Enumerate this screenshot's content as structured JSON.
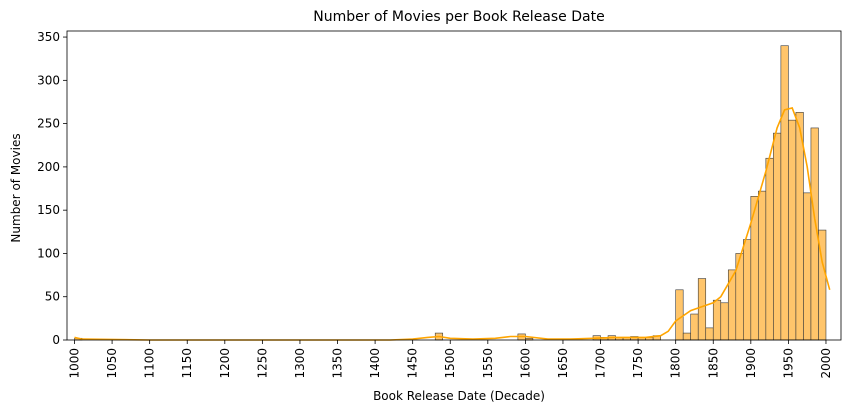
{
  "chart_data": {
    "type": "bar",
    "title": "Number of Movies per Book Release Date",
    "xlabel": "Book Release Date (Decade)",
    "ylabel": "Number of Movies",
    "xlim": [
      990,
      2020
    ],
    "ylim": [
      0,
      357
    ],
    "bin_width": 10,
    "grid": false,
    "bar_color": "#FFC56B",
    "bar_edge_color": "#3a3a3a",
    "kde_color": "#FFA500",
    "x_ticks": [
      "1000",
      "1050",
      "1100",
      "1150",
      "1200",
      "1250",
      "1300",
      "1350",
      "1400",
      "1450",
      "1500",
      "1550",
      "1600",
      "1650",
      "1700",
      "1750",
      "1800",
      "1850",
      "1900",
      "1950",
      "2000"
    ],
    "y_ticks": [
      "0",
      "50",
      "100",
      "150",
      "200",
      "250",
      "300",
      "350"
    ],
    "bins": [
      {
        "x": 1000,
        "value": 2
      },
      {
        "x": 1480,
        "value": 8
      },
      {
        "x": 1590,
        "value": 7
      },
      {
        "x": 1600,
        "value": 2
      },
      {
        "x": 1690,
        "value": 5
      },
      {
        "x": 1700,
        "value": 3
      },
      {
        "x": 1710,
        "value": 5
      },
      {
        "x": 1720,
        "value": 3
      },
      {
        "x": 1730,
        "value": 3
      },
      {
        "x": 1740,
        "value": 4
      },
      {
        "x": 1750,
        "value": 3
      },
      {
        "x": 1760,
        "value": 3
      },
      {
        "x": 1770,
        "value": 5
      },
      {
        "x": 1800,
        "value": 58
      },
      {
        "x": 1810,
        "value": 8
      },
      {
        "x": 1820,
        "value": 30
      },
      {
        "x": 1830,
        "value": 71
      },
      {
        "x": 1840,
        "value": 14
      },
      {
        "x": 1850,
        "value": 46
      },
      {
        "x": 1860,
        "value": 43
      },
      {
        "x": 1870,
        "value": 81
      },
      {
        "x": 1880,
        "value": 100
      },
      {
        "x": 1890,
        "value": 116
      },
      {
        "x": 1900,
        "value": 166
      },
      {
        "x": 1910,
        "value": 172
      },
      {
        "x": 1920,
        "value": 210
      },
      {
        "x": 1930,
        "value": 239
      },
      {
        "x": 1940,
        "value": 340
      },
      {
        "x": 1950,
        "value": 254
      },
      {
        "x": 1960,
        "value": 263
      },
      {
        "x": 1970,
        "value": 170
      },
      {
        "x": 1980,
        "value": 245
      },
      {
        "x": 1990,
        "value": 127
      }
    ],
    "kde": [
      [
        1000,
        3
      ],
      [
        1010,
        1
      ],
      [
        1100,
        0
      ],
      [
        1300,
        0
      ],
      [
        1420,
        0
      ],
      [
        1450,
        1
      ],
      [
        1470,
        3
      ],
      [
        1485,
        4
      ],
      [
        1500,
        2
      ],
      [
        1530,
        1
      ],
      [
        1560,
        2
      ],
      [
        1580,
        4
      ],
      [
        1600,
        4
      ],
      [
        1630,
        1
      ],
      [
        1660,
        1
      ],
      [
        1690,
        2
      ],
      [
        1720,
        3
      ],
      [
        1760,
        3
      ],
      [
        1780,
        5
      ],
      [
        1790,
        10
      ],
      [
        1800,
        22
      ],
      [
        1820,
        34
      ],
      [
        1840,
        40
      ],
      [
        1850,
        43
      ],
      [
        1860,
        50
      ],
      [
        1880,
        80
      ],
      [
        1900,
        135
      ],
      [
        1920,
        195
      ],
      [
        1935,
        245
      ],
      [
        1945,
        266
      ],
      [
        1955,
        268
      ],
      [
        1965,
        245
      ],
      [
        1975,
        200
      ],
      [
        1985,
        140
      ],
      [
        1995,
        90
      ],
      [
        2005,
        58
      ]
    ]
  }
}
